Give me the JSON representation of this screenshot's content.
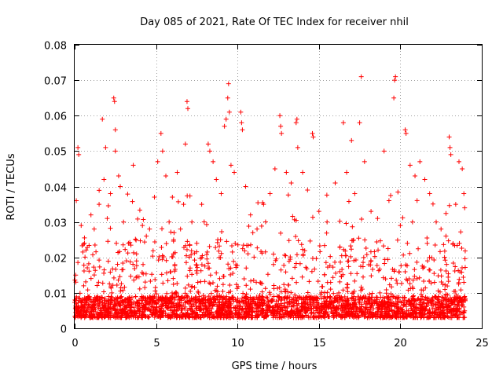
{
  "chart_data": {
    "type": "scatter",
    "title": "Day 085 of 2021, Rate Of TEC Index for receiver nhil",
    "xlabel": "GPS time / hours",
    "ylabel": "ROTI / TECUs",
    "xlim": [
      0,
      25
    ],
    "ylim": [
      0,
      0.08
    ],
    "x_ticks": [
      0,
      5,
      10,
      15,
      20,
      25
    ],
    "x_tick_labels": [
      "0",
      "5",
      "10",
      "15",
      "20",
      "25"
    ],
    "y_ticks": [
      0,
      0.01,
      0.02,
      0.03,
      0.04,
      0.05,
      0.06,
      0.07,
      0.08
    ],
    "y_tick_labels": [
      "0",
      "0.01",
      "0.02",
      "0.03",
      "0.04",
      "0.05",
      "0.06",
      "0.07",
      "0.08"
    ],
    "grid": true,
    "marker": "+",
    "color": "#ff0000",
    "x_data_range": [
      0,
      24
    ],
    "baseline_band": [
      0.003,
      0.009
    ],
    "series": [
      {
        "name": "ROTI",
        "points": [
          [
            0.2,
            0.051
          ],
          [
            0.25,
            0.049
          ],
          [
            0.1,
            0.036
          ],
          [
            0.4,
            0.029
          ],
          [
            0.6,
            0.024
          ],
          [
            1.0,
            0.032
          ],
          [
            1.2,
            0.028
          ],
          [
            1.5,
            0.035
          ],
          [
            1.7,
            0.059
          ],
          [
            1.8,
            0.042
          ],
          [
            1.9,
            0.051
          ],
          [
            2.0,
            0.031
          ],
          [
            2.2,
            0.038
          ],
          [
            2.4,
            0.065
          ],
          [
            2.45,
            0.064
          ],
          [
            2.5,
            0.056
          ],
          [
            2.5,
            0.05
          ],
          [
            2.7,
            0.043
          ],
          [
            2.8,
            0.04
          ],
          [
            3.0,
            0.03
          ],
          [
            3.3,
            0.024
          ],
          [
            3.6,
            0.046
          ],
          [
            3.8,
            0.021
          ],
          [
            4.2,
            0.018
          ],
          [
            4.4,
            0.026
          ],
          [
            4.6,
            0.028
          ],
          [
            4.9,
            0.037
          ],
          [
            5.1,
            0.047
          ],
          [
            5.3,
            0.055
          ],
          [
            5.4,
            0.05
          ],
          [
            5.6,
            0.043
          ],
          [
            5.8,
            0.03
          ],
          [
            6.0,
            0.037
          ],
          [
            6.3,
            0.044
          ],
          [
            6.5,
            0.028
          ],
          [
            6.8,
            0.052
          ],
          [
            6.9,
            0.064
          ],
          [
            6.95,
            0.062
          ],
          [
            7.2,
            0.03
          ],
          [
            7.5,
            0.024
          ],
          [
            7.8,
            0.035
          ],
          [
            8.2,
            0.052
          ],
          [
            8.3,
            0.05
          ],
          [
            8.5,
            0.047
          ],
          [
            8.7,
            0.042
          ],
          [
            9.0,
            0.038
          ],
          [
            9.2,
            0.057
          ],
          [
            9.3,
            0.059
          ],
          [
            9.4,
            0.065
          ],
          [
            9.45,
            0.069
          ],
          [
            9.5,
            0.061
          ],
          [
            9.6,
            0.046
          ],
          [
            9.8,
            0.044
          ],
          [
            10.2,
            0.061
          ],
          [
            10.25,
            0.058
          ],
          [
            10.3,
            0.056
          ],
          [
            10.5,
            0.04
          ],
          [
            10.8,
            0.032
          ],
          [
            11.2,
            0.028
          ],
          [
            11.6,
            0.035
          ],
          [
            12.0,
            0.038
          ],
          [
            12.3,
            0.045
          ],
          [
            12.6,
            0.06
          ],
          [
            12.65,
            0.057
          ],
          [
            12.7,
            0.055
          ],
          [
            13.0,
            0.044
          ],
          [
            13.3,
            0.041
          ],
          [
            13.6,
            0.058
          ],
          [
            13.65,
            0.059
          ],
          [
            13.7,
            0.051
          ],
          [
            14.0,
            0.044
          ],
          [
            14.3,
            0.039
          ],
          [
            14.6,
            0.055
          ],
          [
            14.65,
            0.054
          ],
          [
            15.0,
            0.033
          ],
          [
            15.5,
            0.03
          ],
          [
            16.0,
            0.041
          ],
          [
            16.5,
            0.058
          ],
          [
            16.7,
            0.044
          ],
          [
            17.0,
            0.053
          ],
          [
            17.2,
            0.038
          ],
          [
            17.5,
            0.058
          ],
          [
            17.6,
            0.071
          ],
          [
            17.8,
            0.047
          ],
          [
            18.2,
            0.033
          ],
          [
            18.6,
            0.031
          ],
          [
            19.0,
            0.05
          ],
          [
            19.3,
            0.036
          ],
          [
            19.6,
            0.065
          ],
          [
            19.65,
            0.07
          ],
          [
            19.7,
            0.071
          ],
          [
            20.0,
            0.029
          ],
          [
            20.3,
            0.056
          ],
          [
            20.35,
            0.055
          ],
          [
            20.6,
            0.046
          ],
          [
            20.9,
            0.043
          ],
          [
            21.2,
            0.047
          ],
          [
            21.5,
            0.042
          ],
          [
            21.8,
            0.038
          ],
          [
            22.2,
            0.03
          ],
          [
            22.5,
            0.028
          ],
          [
            22.8,
            0.026
          ],
          [
            23.0,
            0.054
          ],
          [
            23.05,
            0.051
          ],
          [
            23.1,
            0.049
          ],
          [
            23.4,
            0.035
          ],
          [
            23.6,
            0.047
          ],
          [
            23.8,
            0.045
          ],
          [
            23.9,
            0.038
          ],
          [
            23.95,
            0.034
          ]
        ]
      }
    ]
  }
}
